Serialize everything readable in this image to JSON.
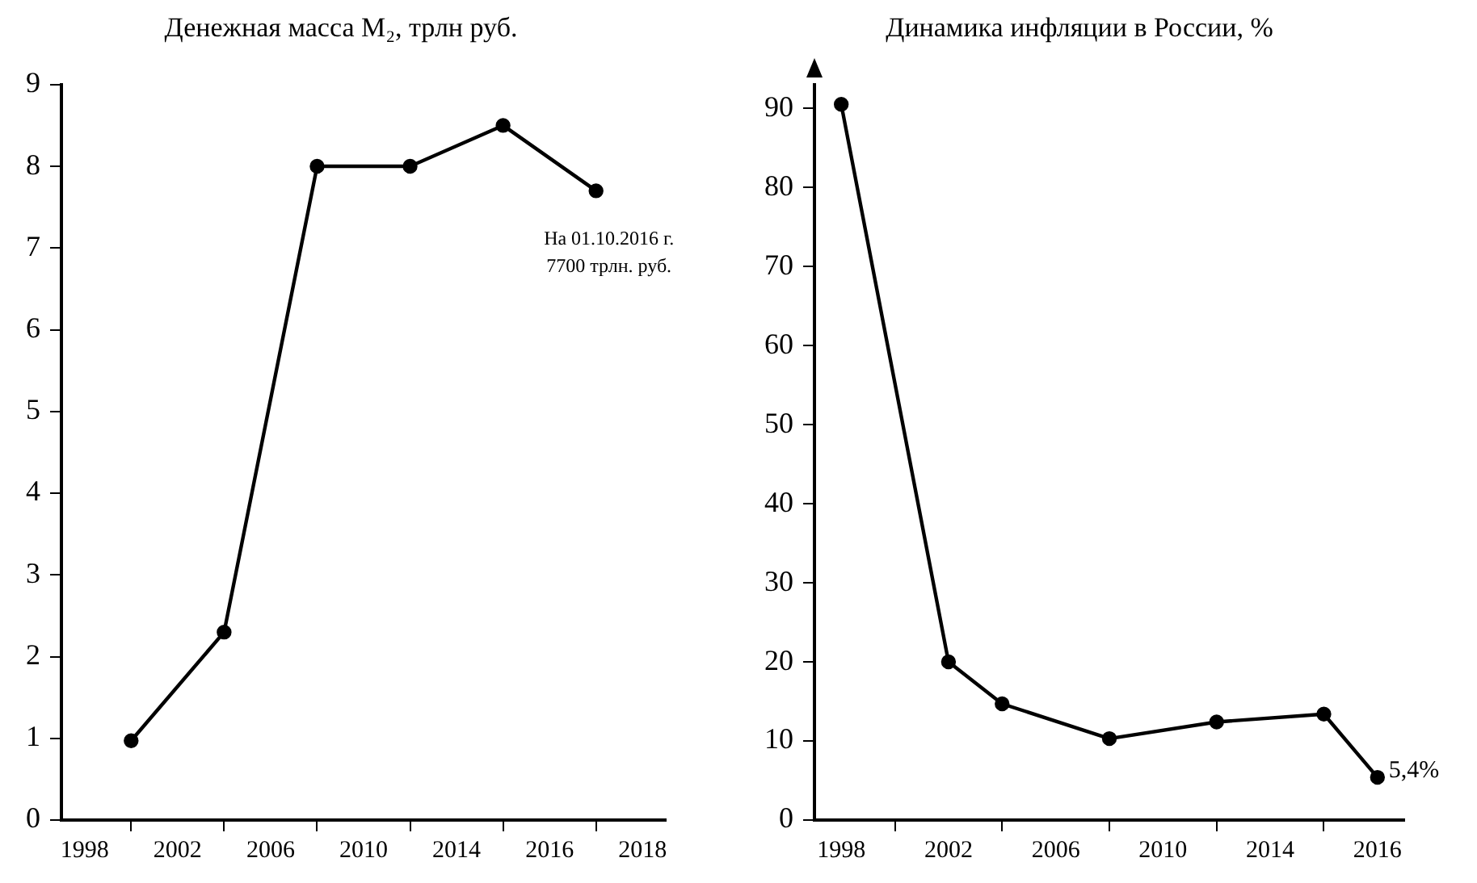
{
  "chart_data": [
    {
      "type": "line",
      "title": "Денежная масса M₂, трлн руб.",
      "categories": [
        "1998",
        null,
        "2002",
        null,
        "2006",
        null,
        "2010",
        null,
        "2014",
        null,
        "2016",
        null,
        "2018"
      ],
      "series": [
        {
          "color": "#000000",
          "values": [
            null,
            0.97,
            null,
            2.3,
            null,
            8,
            null,
            8,
            null,
            8.5,
            null,
            7.7,
            null
          ]
        }
      ],
      "ylim": [
        0,
        9
      ],
      "yticks": [
        0,
        1,
        2,
        3,
        4,
        5,
        6,
        7,
        8,
        9
      ],
      "grid": false,
      "legend": false,
      "marker": "circle",
      "line_style": "solid",
      "annotations": [
        "На 01.10.2016 г.\n7700 трлн. руб."
      ]
    },
    {
      "type": "line",
      "title": "Динамика инфляции в России, %",
      "categories": [
        "1998",
        null,
        "2002",
        null,
        "2006",
        null,
        "2010",
        null,
        "2014",
        null,
        "2016"
      ],
      "series": [
        {
          "color": "#000000",
          "values": [
            90.5,
            null,
            20,
            14.7,
            null,
            10.3,
            null,
            12.4,
            null,
            13.4,
            5.4
          ],
          "value_labels": [
            null,
            null,
            null,
            null,
            null,
            null,
            null,
            null,
            null,
            null,
            "5,4%"
          ]
        }
      ],
      "ylim": [
        0,
        93
      ],
      "yticks": [
        0,
        10,
        20,
        30,
        40,
        50,
        60,
        70,
        80,
        90
      ],
      "grid": false,
      "legend": false,
      "marker": "circle",
      "line_style": "solid"
    }
  ]
}
